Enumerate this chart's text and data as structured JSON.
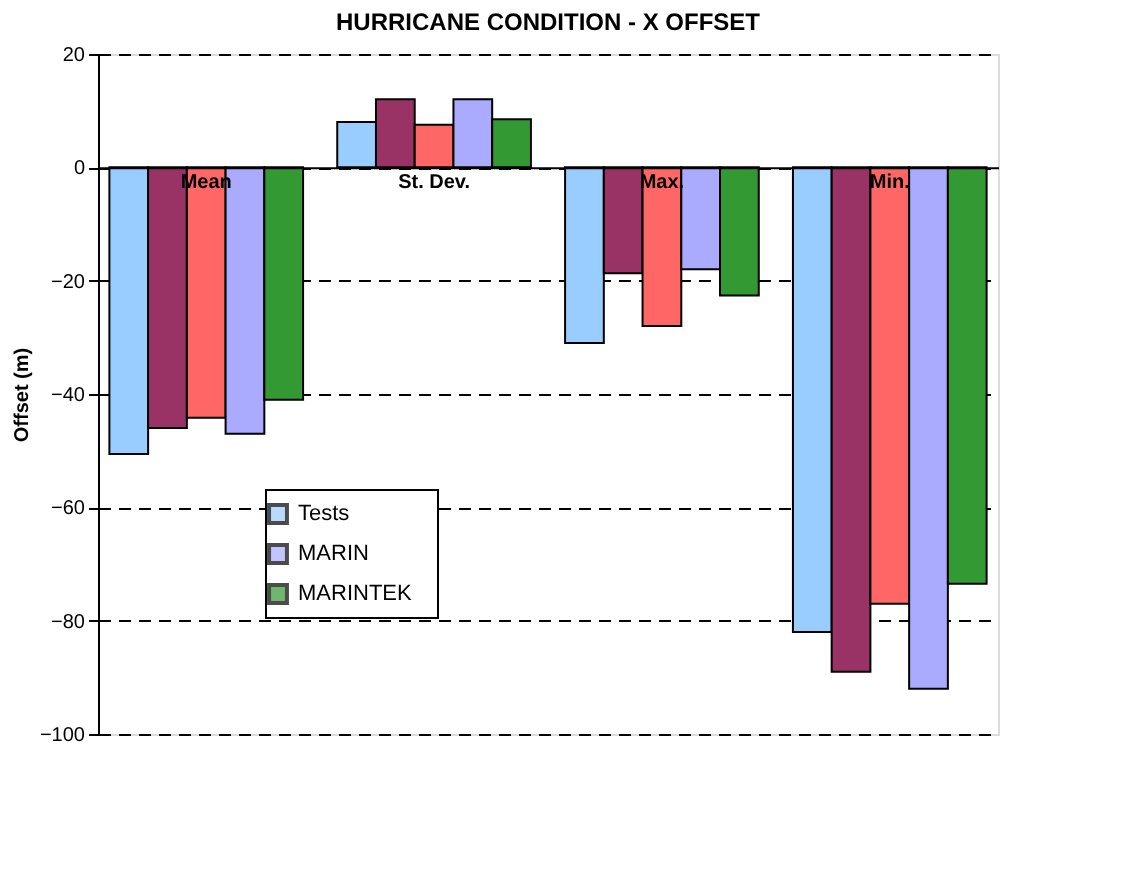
{
  "chart_data": {
    "type": "bar",
    "title": "HURRICANE CONDITION - X OFFSET",
    "ylabel": "Offset (m)",
    "categories": [
      "Mean",
      "St. Dev.",
      "Max.",
      "Min."
    ],
    "series": [
      {
        "name": "Tests",
        "color": "#99ccff",
        "values": [
          -50.6,
          8,
          -31,
          -82
        ]
      },
      {
        "color": "#993366",
        "values": [
          -46,
          12,
          -18.7,
          -89
        ]
      },
      {
        "color": "#ff6666",
        "values": [
          -44.2,
          7.5,
          -28,
          -77
        ]
      },
      {
        "name": "MARIN",
        "color": "#aaaaff",
        "values": [
          -47,
          12,
          -18,
          -92
        ]
      },
      {
        "name": "MARINTEK",
        "color": "#339933",
        "values": [
          -41,
          8.5,
          -22.6,
          -73.5
        ]
      }
    ],
    "ylim": [
      -100,
      20
    ],
    "yticks": [
      -100,
      -80,
      -60,
      -40,
      -20,
      0,
      20
    ],
    "grid": "y",
    "legend": "bottom left"
  }
}
